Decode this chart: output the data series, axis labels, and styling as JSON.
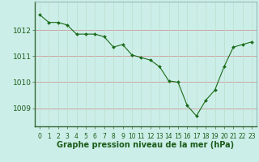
{
  "x": [
    0,
    1,
    2,
    3,
    4,
    5,
    6,
    7,
    8,
    9,
    10,
    11,
    12,
    13,
    14,
    15,
    16,
    17,
    18,
    19,
    20,
    21,
    22,
    23
  ],
  "y": [
    1012.6,
    1012.3,
    1012.3,
    1012.2,
    1011.85,
    1011.85,
    1011.85,
    1011.75,
    1011.35,
    1011.45,
    1011.05,
    1010.95,
    1010.85,
    1010.6,
    1010.05,
    1010.0,
    1009.1,
    1008.7,
    1009.3,
    1009.7,
    1010.6,
    1011.35,
    1011.45,
    1011.55
  ],
  "bg_color": "#cceee8",
  "line_color": "#1a6b1a",
  "marker_color": "#1a6b1a",
  "grid_color_h": "#aacccc",
  "grid_color_v": "#bbddcc",
  "ylabel_ticks": [
    1009,
    1010,
    1011,
    1012
  ],
  "xlabel_label": "Graphe pression niveau de la mer (hPa)",
  "ylim": [
    1008.3,
    1013.1
  ],
  "xlim": [
    -0.5,
    23.5
  ],
  "tick_fontsize": 6.5,
  "label_color": "#1a5c1a"
}
